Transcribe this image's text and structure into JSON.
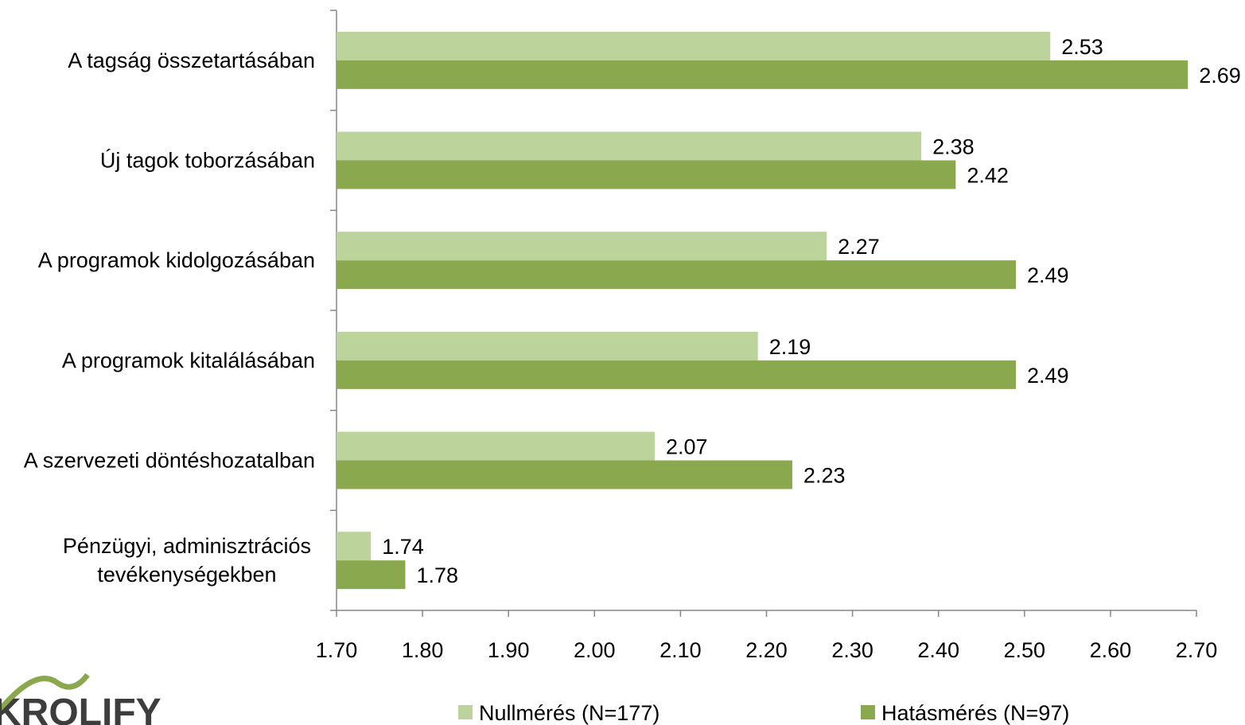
{
  "chart_data": {
    "type": "bar",
    "orientation": "horizontal",
    "categories": [
      "A tagság összetartásában",
      "Új tagok toborzásában",
      "A programok kidolgozásában",
      "A programok kitalálásában",
      "A szervezeti döntéshozatalban",
      "Pénzügyi, adminisztrációs tevékenységekben"
    ],
    "category_lines": [
      [
        "A tagság összetartásában"
      ],
      [
        "Új tagok toborzásában"
      ],
      [
        "A programok kidolgozásában"
      ],
      [
        "A programok kitalálásában"
      ],
      [
        "A szervezeti döntéshozatalban"
      ],
      [
        "Pénzügyi, adminisztrációs",
        "tevékenységekben"
      ]
    ],
    "series": [
      {
        "name": "Nullmérés (N=177)",
        "color": "#bcd39b",
        "values": [
          2.53,
          2.38,
          2.27,
          2.19,
          2.07,
          1.74
        ]
      },
      {
        "name": "Hatásmérés (N=97)",
        "color": "#8aa84e",
        "values": [
          2.69,
          2.42,
          2.49,
          2.49,
          2.23,
          1.78
        ]
      }
    ],
    "xlim": [
      1.7,
      2.7
    ],
    "xticks": [
      "1.70",
      "1.80",
      "1.90",
      "2.00",
      "2.10",
      "2.20",
      "2.30",
      "2.40",
      "2.50",
      "2.60",
      "2.70"
    ],
    "title": "",
    "xlabel": "",
    "ylabel": "",
    "grid": false,
    "legend_position": "bottom"
  },
  "logo": {
    "text": "KROLIFY",
    "color": "#8aa84e"
  }
}
